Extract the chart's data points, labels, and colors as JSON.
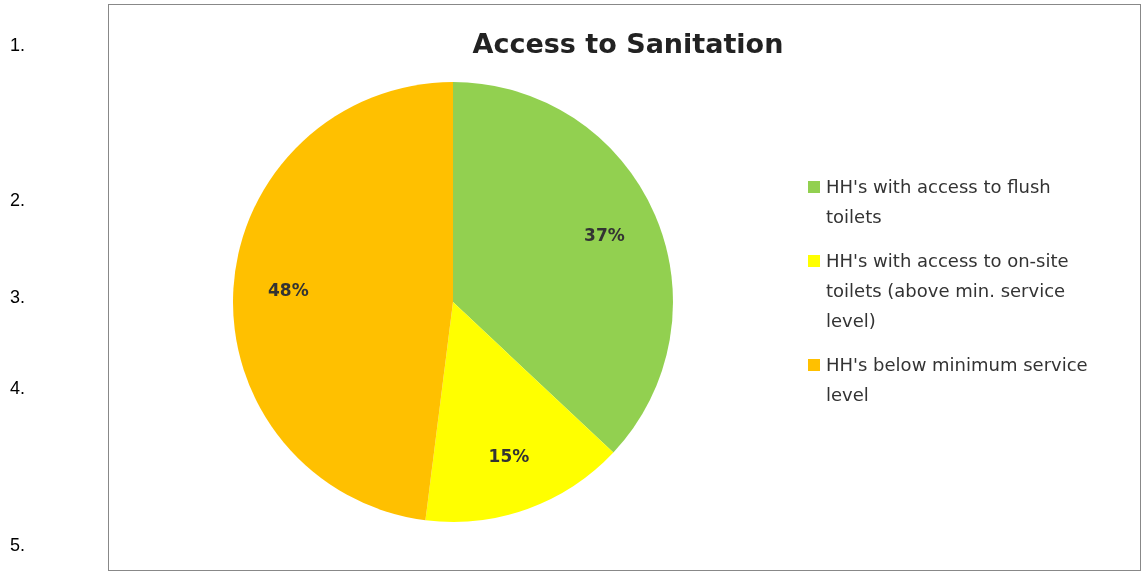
{
  "chart_data": {
    "type": "pie",
    "title": "Access to Sanitation",
    "categories": [
      "HH's with access to flush toilets",
      "HH's with access to on-site toilets (above min. service level)",
      "HH's below minimum service level"
    ],
    "values": [
      37,
      15,
      48
    ],
    "colors": [
      "#92d050",
      "#ffff00",
      "#ffc000"
    ],
    "value_labels": [
      "37%",
      "15%",
      "48%"
    ],
    "legend": "right",
    "annotations": [
      "1.",
      "2.",
      "3.",
      "4.",
      "5."
    ]
  }
}
